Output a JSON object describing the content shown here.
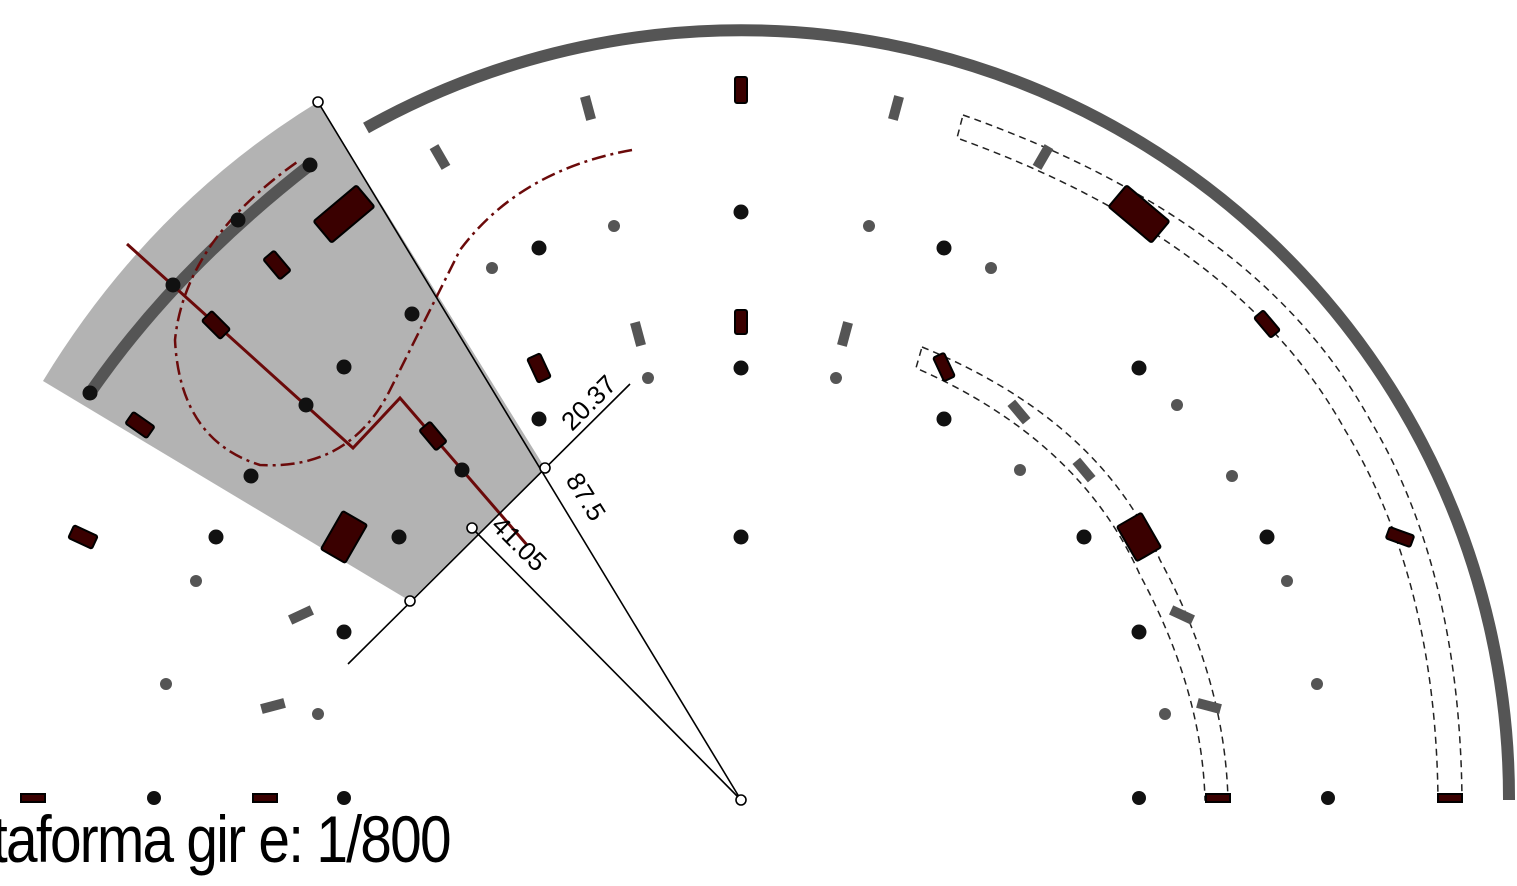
{
  "caption": {
    "text": "taforma gir e: 1/800"
  },
  "dimensions": {
    "offset_short": "20.37",
    "radius_main": "87.5",
    "offset_long": "41.05"
  },
  "colors": {
    "wall_gray": "#555555",
    "pillar_dark": "#3a0000",
    "dot_black": "#111111",
    "dot_gray": "#555555",
    "sector_fill": "#b3b3b3",
    "route_red": "#6b0a0a",
    "dim_line": "#000000",
    "background": "#ffffff"
  }
}
